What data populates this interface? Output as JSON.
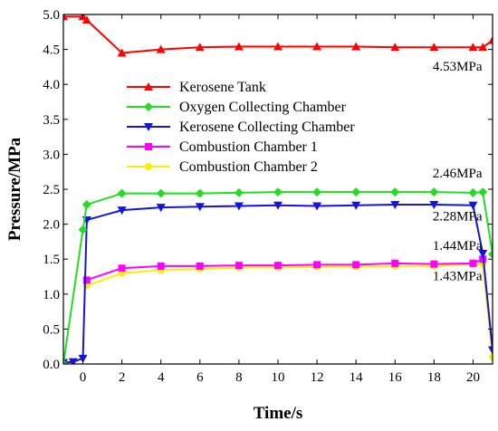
{
  "chart_data": {
    "type": "line",
    "xlabel": "Time/s",
    "ylabel": "Pressure/MPa",
    "xlim": [
      -1,
      21
    ],
    "ylim": [
      0,
      5.0
    ],
    "x_ticks": [
      0,
      2,
      4,
      6,
      8,
      10,
      12,
      14,
      16,
      18,
      20
    ],
    "y_ticks": [
      0.0,
      0.5,
      1.0,
      1.5,
      2.0,
      2.5,
      3.0,
      3.5,
      4.0,
      4.5,
      5.0
    ],
    "x_tick_labels": [
      "0",
      "2",
      "4",
      "6",
      "8",
      "10",
      "12",
      "14",
      "16",
      "18",
      "20"
    ],
    "y_tick_labels": [
      "0.0",
      "0.5",
      "1.0",
      "1.5",
      "2.0",
      "2.5",
      "3.0",
      "3.5",
      "4.0",
      "4.5",
      "5.0"
    ],
    "grid": false,
    "legend_position": "upper-center",
    "series": [
      {
        "name": "Kerosene Tank",
        "color": "#ff0000",
        "marker": "triangle-up",
        "x": [
          -1,
          0,
          0.2,
          2,
          4,
          6,
          8,
          10,
          12,
          14,
          16,
          18,
          20,
          20.5,
          21
        ],
        "y": [
          4.97,
          4.97,
          4.92,
          4.45,
          4.5,
          4.53,
          4.54,
          4.54,
          4.54,
          4.54,
          4.53,
          4.53,
          4.53,
          4.53,
          4.63
        ]
      },
      {
        "name": "Oxygen Collecting Chamber",
        "color": "#22dd22",
        "marker": "diamond",
        "x": [
          -1,
          0,
          0.2,
          2,
          4,
          6,
          8,
          10,
          12,
          14,
          16,
          18,
          20,
          20.5,
          21
        ],
        "y": [
          0.0,
          1.92,
          2.28,
          2.44,
          2.44,
          2.44,
          2.45,
          2.46,
          2.46,
          2.46,
          2.46,
          2.46,
          2.45,
          2.46,
          1.57
        ]
      },
      {
        "name": "Kerosene Collecting Chamber",
        "color": "#1414dc",
        "marker": "triangle-down",
        "x": [
          -1,
          -0.5,
          0,
          0.2,
          2,
          4,
          6,
          8,
          10,
          12,
          14,
          16,
          18,
          20,
          20.5,
          21
        ],
        "y": [
          0.02,
          0.03,
          0.08,
          2.06,
          2.2,
          2.24,
          2.25,
          2.26,
          2.27,
          2.26,
          2.27,
          2.28,
          2.28,
          2.27,
          1.58,
          0.2
        ]
      },
      {
        "name": "Combustion Chamber 1",
        "color": "#ff00ff",
        "marker": "square",
        "x": [
          0.2,
          2,
          4,
          6,
          8,
          10,
          12,
          14,
          16,
          18,
          20,
          20.5
        ],
        "y": [
          1.2,
          1.37,
          1.4,
          1.4,
          1.41,
          1.41,
          1.42,
          1.42,
          1.44,
          1.43,
          1.44,
          1.5
        ]
      },
      {
        "name": "Combustion Chamber 2",
        "color": "#ffee00",
        "marker": "circle",
        "x": [
          0.2,
          2,
          4,
          6,
          8,
          10,
          12,
          14,
          16,
          18,
          20,
          20.5,
          21
        ],
        "y": [
          1.12,
          1.3,
          1.34,
          1.36,
          1.38,
          1.38,
          1.39,
          1.39,
          1.4,
          1.4,
          1.43,
          1.43,
          0.1
        ]
      }
    ],
    "annotations": [
      {
        "text": "4.53MPa",
        "x": 19.2,
        "y": 4.2
      },
      {
        "text": "2.46MPa",
        "x": 19.2,
        "y": 2.67
      },
      {
        "text": "2.28MPa",
        "x": 19.2,
        "y": 2.05
      },
      {
        "text": "1.44MPa",
        "x": 19.2,
        "y": 1.63
      },
      {
        "text": "1.43MPa",
        "x": 19.2,
        "y": 1.2
      }
    ]
  }
}
